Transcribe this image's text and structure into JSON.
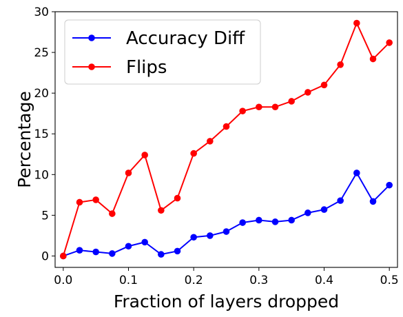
{
  "chart_data": {
    "type": "line",
    "title": "",
    "xlabel": "Fraction of layers dropped",
    "ylabel": "Percentage",
    "xlim": [
      -0.0125,
      0.5125
    ],
    "ylim": [
      -1.4,
      30
    ],
    "xticks": [
      0.0,
      0.1,
      0.2,
      0.3,
      0.4,
      0.5
    ],
    "xtick_labels": [
      "0.0",
      "0.1",
      "0.2",
      "0.3",
      "0.4",
      "0.5"
    ],
    "yticks": [
      0,
      5,
      10,
      15,
      20,
      25,
      30
    ],
    "ytick_labels": [
      "0",
      "5",
      "10",
      "15",
      "20",
      "25",
      "30"
    ],
    "grid": false,
    "legend_position": "upper-left",
    "x": [
      0.0,
      0.025,
      0.05,
      0.075,
      0.1,
      0.125,
      0.15,
      0.175,
      0.2,
      0.225,
      0.25,
      0.275,
      0.3,
      0.325,
      0.35,
      0.375,
      0.4,
      0.425,
      0.45,
      0.475,
      0.5
    ],
    "series": [
      {
        "name": "Accuracy Diff",
        "color": "#0000ff",
        "marker": "circle",
        "values": [
          0.0,
          0.7,
          0.5,
          0.3,
          1.2,
          1.7,
          0.2,
          0.6,
          2.3,
          2.5,
          3.0,
          4.1,
          4.4,
          4.2,
          4.4,
          5.3,
          5.7,
          6.8,
          10.2,
          6.7,
          8.7
        ]
      },
      {
        "name": "Flips",
        "color": "#ff0000",
        "marker": "circle",
        "values": [
          0.0,
          6.6,
          6.9,
          5.2,
          10.2,
          12.4,
          5.6,
          7.1,
          12.6,
          14.1,
          15.9,
          17.8,
          18.3,
          18.3,
          19.0,
          20.1,
          21.0,
          23.5,
          28.6,
          24.2,
          26.2
        ]
      }
    ]
  }
}
